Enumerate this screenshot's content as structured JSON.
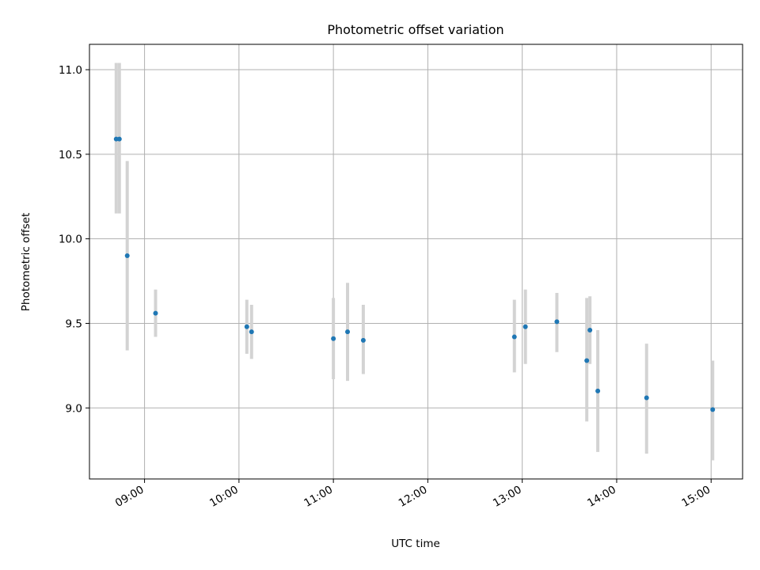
{
  "chart_data": {
    "type": "scatter",
    "title": "Photometric offset variation",
    "xlabel": "UTC time",
    "ylabel": "Photometric offset",
    "grid": true,
    "x_range": [
      "08:25",
      "15:20"
    ],
    "ylim": [
      8.58,
      11.15
    ],
    "x_ticks": [
      "09:00",
      "10:00",
      "11:00",
      "12:00",
      "13:00",
      "14:00",
      "15:00"
    ],
    "y_ticks": [
      "9.0",
      "9.5",
      "10.0",
      "10.5",
      "11.0"
    ],
    "colors": {
      "marker": "#1f77b4",
      "error_bar": "#d3d3d3",
      "grid": "#b0b0b0"
    },
    "series": [
      {
        "points": [
          {
            "x": "08:42",
            "y": 10.59,
            "y_low": 10.15,
            "y_high": 11.04
          },
          {
            "x": "08:44",
            "y": 10.59,
            "y_low": 10.15,
            "y_high": 11.04
          },
          {
            "x": "08:49",
            "y": 9.9,
            "y_low": 9.34,
            "y_high": 10.46
          },
          {
            "x": "09:07",
            "y": 9.56,
            "y_low": 9.42,
            "y_high": 9.7
          },
          {
            "x": "10:05",
            "y": 9.48,
            "y_low": 9.32,
            "y_high": 9.64
          },
          {
            "x": "10:08",
            "y": 9.45,
            "y_low": 9.29,
            "y_high": 9.61
          },
          {
            "x": "11:00",
            "y": 9.41,
            "y_low": 9.17,
            "y_high": 9.65
          },
          {
            "x": "11:09",
            "y": 9.45,
            "y_low": 9.16,
            "y_high": 9.74
          },
          {
            "x": "11:19",
            "y": 9.4,
            "y_low": 9.2,
            "y_high": 9.61
          },
          {
            "x": "12:55",
            "y": 9.42,
            "y_low": 9.21,
            "y_high": 9.64
          },
          {
            "x": "13:02",
            "y": 9.48,
            "y_low": 9.26,
            "y_high": 9.7
          },
          {
            "x": "13:22",
            "y": 9.51,
            "y_low": 9.33,
            "y_high": 9.68
          },
          {
            "x": "13:41",
            "y": 9.28,
            "y_low": 8.92,
            "y_high": 9.65
          },
          {
            "x": "13:43",
            "y": 9.46,
            "y_low": 9.26,
            "y_high": 9.66
          },
          {
            "x": "13:48",
            "y": 9.1,
            "y_low": 8.74,
            "y_high": 9.46
          },
          {
            "x": "14:19",
            "y": 9.06,
            "y_low": 8.73,
            "y_high": 9.38
          },
          {
            "x": "15:01",
            "y": 8.99,
            "y_low": 8.69,
            "y_high": 9.28
          }
        ]
      }
    ]
  }
}
